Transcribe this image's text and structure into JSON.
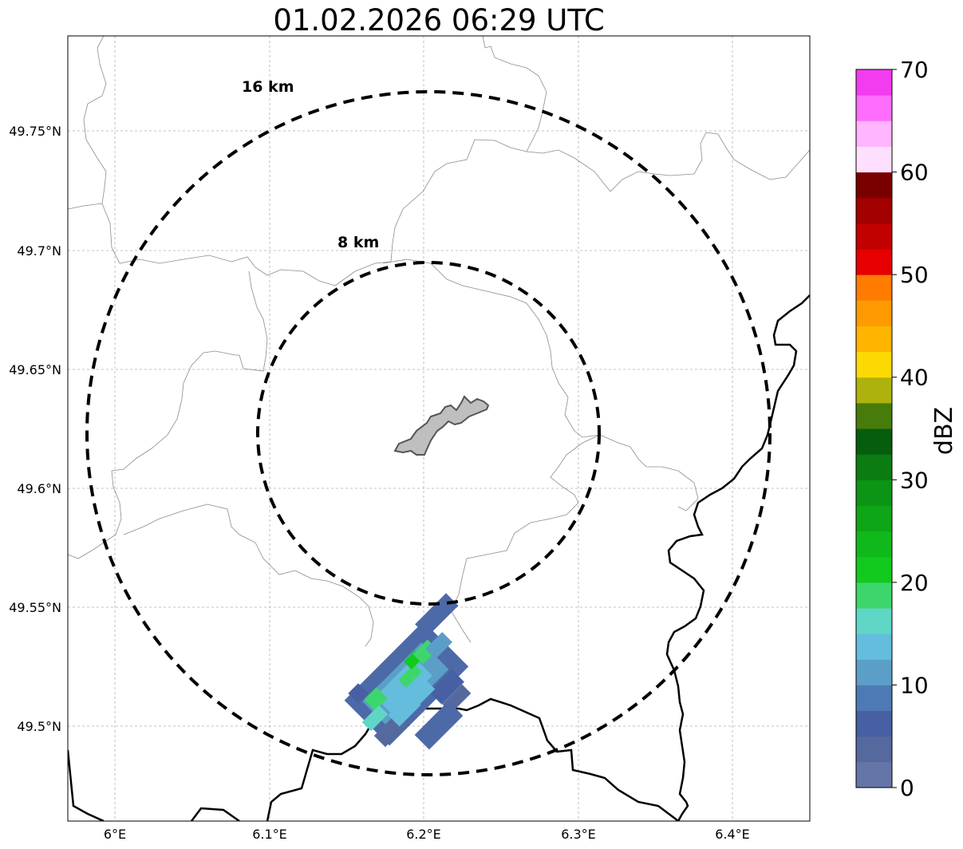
{
  "title": "01.02.2026 06:29 UTC",
  "map": {
    "x_ticks": [
      "6°E",
      "6.1°E",
      "6.2°E",
      "6.3°E",
      "6.4°E"
    ],
    "y_ticks": [
      "49.75°N",
      "49.7°N",
      "49.65°N",
      "49.6°N",
      "49.55°N",
      "49.5°N"
    ],
    "range_rings": [
      {
        "label": "16 km",
        "radius_km": 16
      },
      {
        "label": "8 km",
        "radius_km": 8
      }
    ],
    "radar_center": {
      "lon": 6.2,
      "lat": 49.623
    }
  },
  "colorbar": {
    "label": "dBZ",
    "ticks": [
      "0",
      "10",
      "20",
      "30",
      "40",
      "50",
      "60",
      "70"
    ],
    "range": [
      0,
      70
    ],
    "colors": [
      "#6675a8",
      "#55699f",
      "#4660a3",
      "#4d7ab4",
      "#5b9ec8",
      "#64bddc",
      "#60d6c6",
      "#3dd66c",
      "#12c91e",
      "#0fb91b",
      "#0ea617",
      "#0c9414",
      "#0a7c12",
      "#065d0d",
      "#477c0a",
      "#aeb20c",
      "#fdd904",
      "#ffb400",
      "#ff9a00",
      "#ff7c00",
      "#e60000",
      "#c20000",
      "#a30000",
      "#7a0000",
      "#ffdfff",
      "#ffb5ff",
      "#ff6dff",
      "#f33bef"
    ]
  },
  "chart_data": {
    "type": "heatmap",
    "title": "01.02.2026 06:29 UTC",
    "xlabel": "",
    "ylabel": "",
    "xlim": [
      5.97,
      6.45
    ],
    "ylim": [
      49.46,
      49.79
    ],
    "colorbar_label": "dBZ",
    "colorbar_range": [
      0,
      70
    ],
    "echo_region": {
      "lon_range": [
        6.15,
        6.23
      ],
      "lat_range": [
        49.485,
        49.55
      ],
      "dbz_range": [
        0,
        22
      ]
    }
  }
}
